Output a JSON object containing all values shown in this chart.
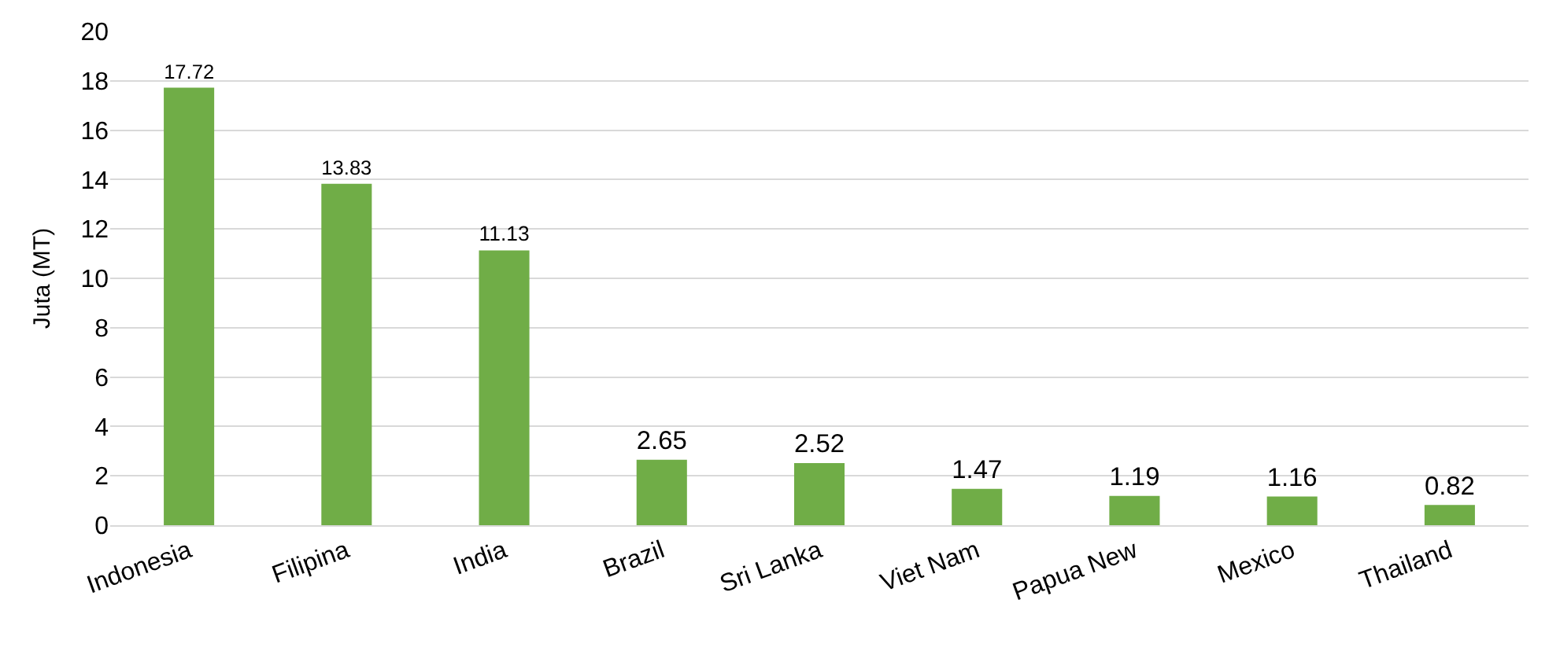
{
  "chart_data": {
    "type": "bar",
    "ylabel": "Juta (MT)",
    "categories": [
      "Indonesia",
      "Filipina",
      "India",
      "Brazil",
      "Sri Lanka",
      "Viet Nam",
      "Papua New",
      "Mexico",
      "Thailand"
    ],
    "values": [
      17.72,
      13.83,
      11.13,
      2.65,
      2.52,
      1.47,
      1.19,
      1.16,
      0.82
    ],
    "color": "#70ad47",
    "ylim": [
      0,
      20
    ],
    "yticks": [
      0,
      2,
      4,
      6,
      8,
      10,
      12,
      14,
      16,
      18,
      20
    ],
    "grid": "y",
    "data_labels": true,
    "legend": false
  }
}
